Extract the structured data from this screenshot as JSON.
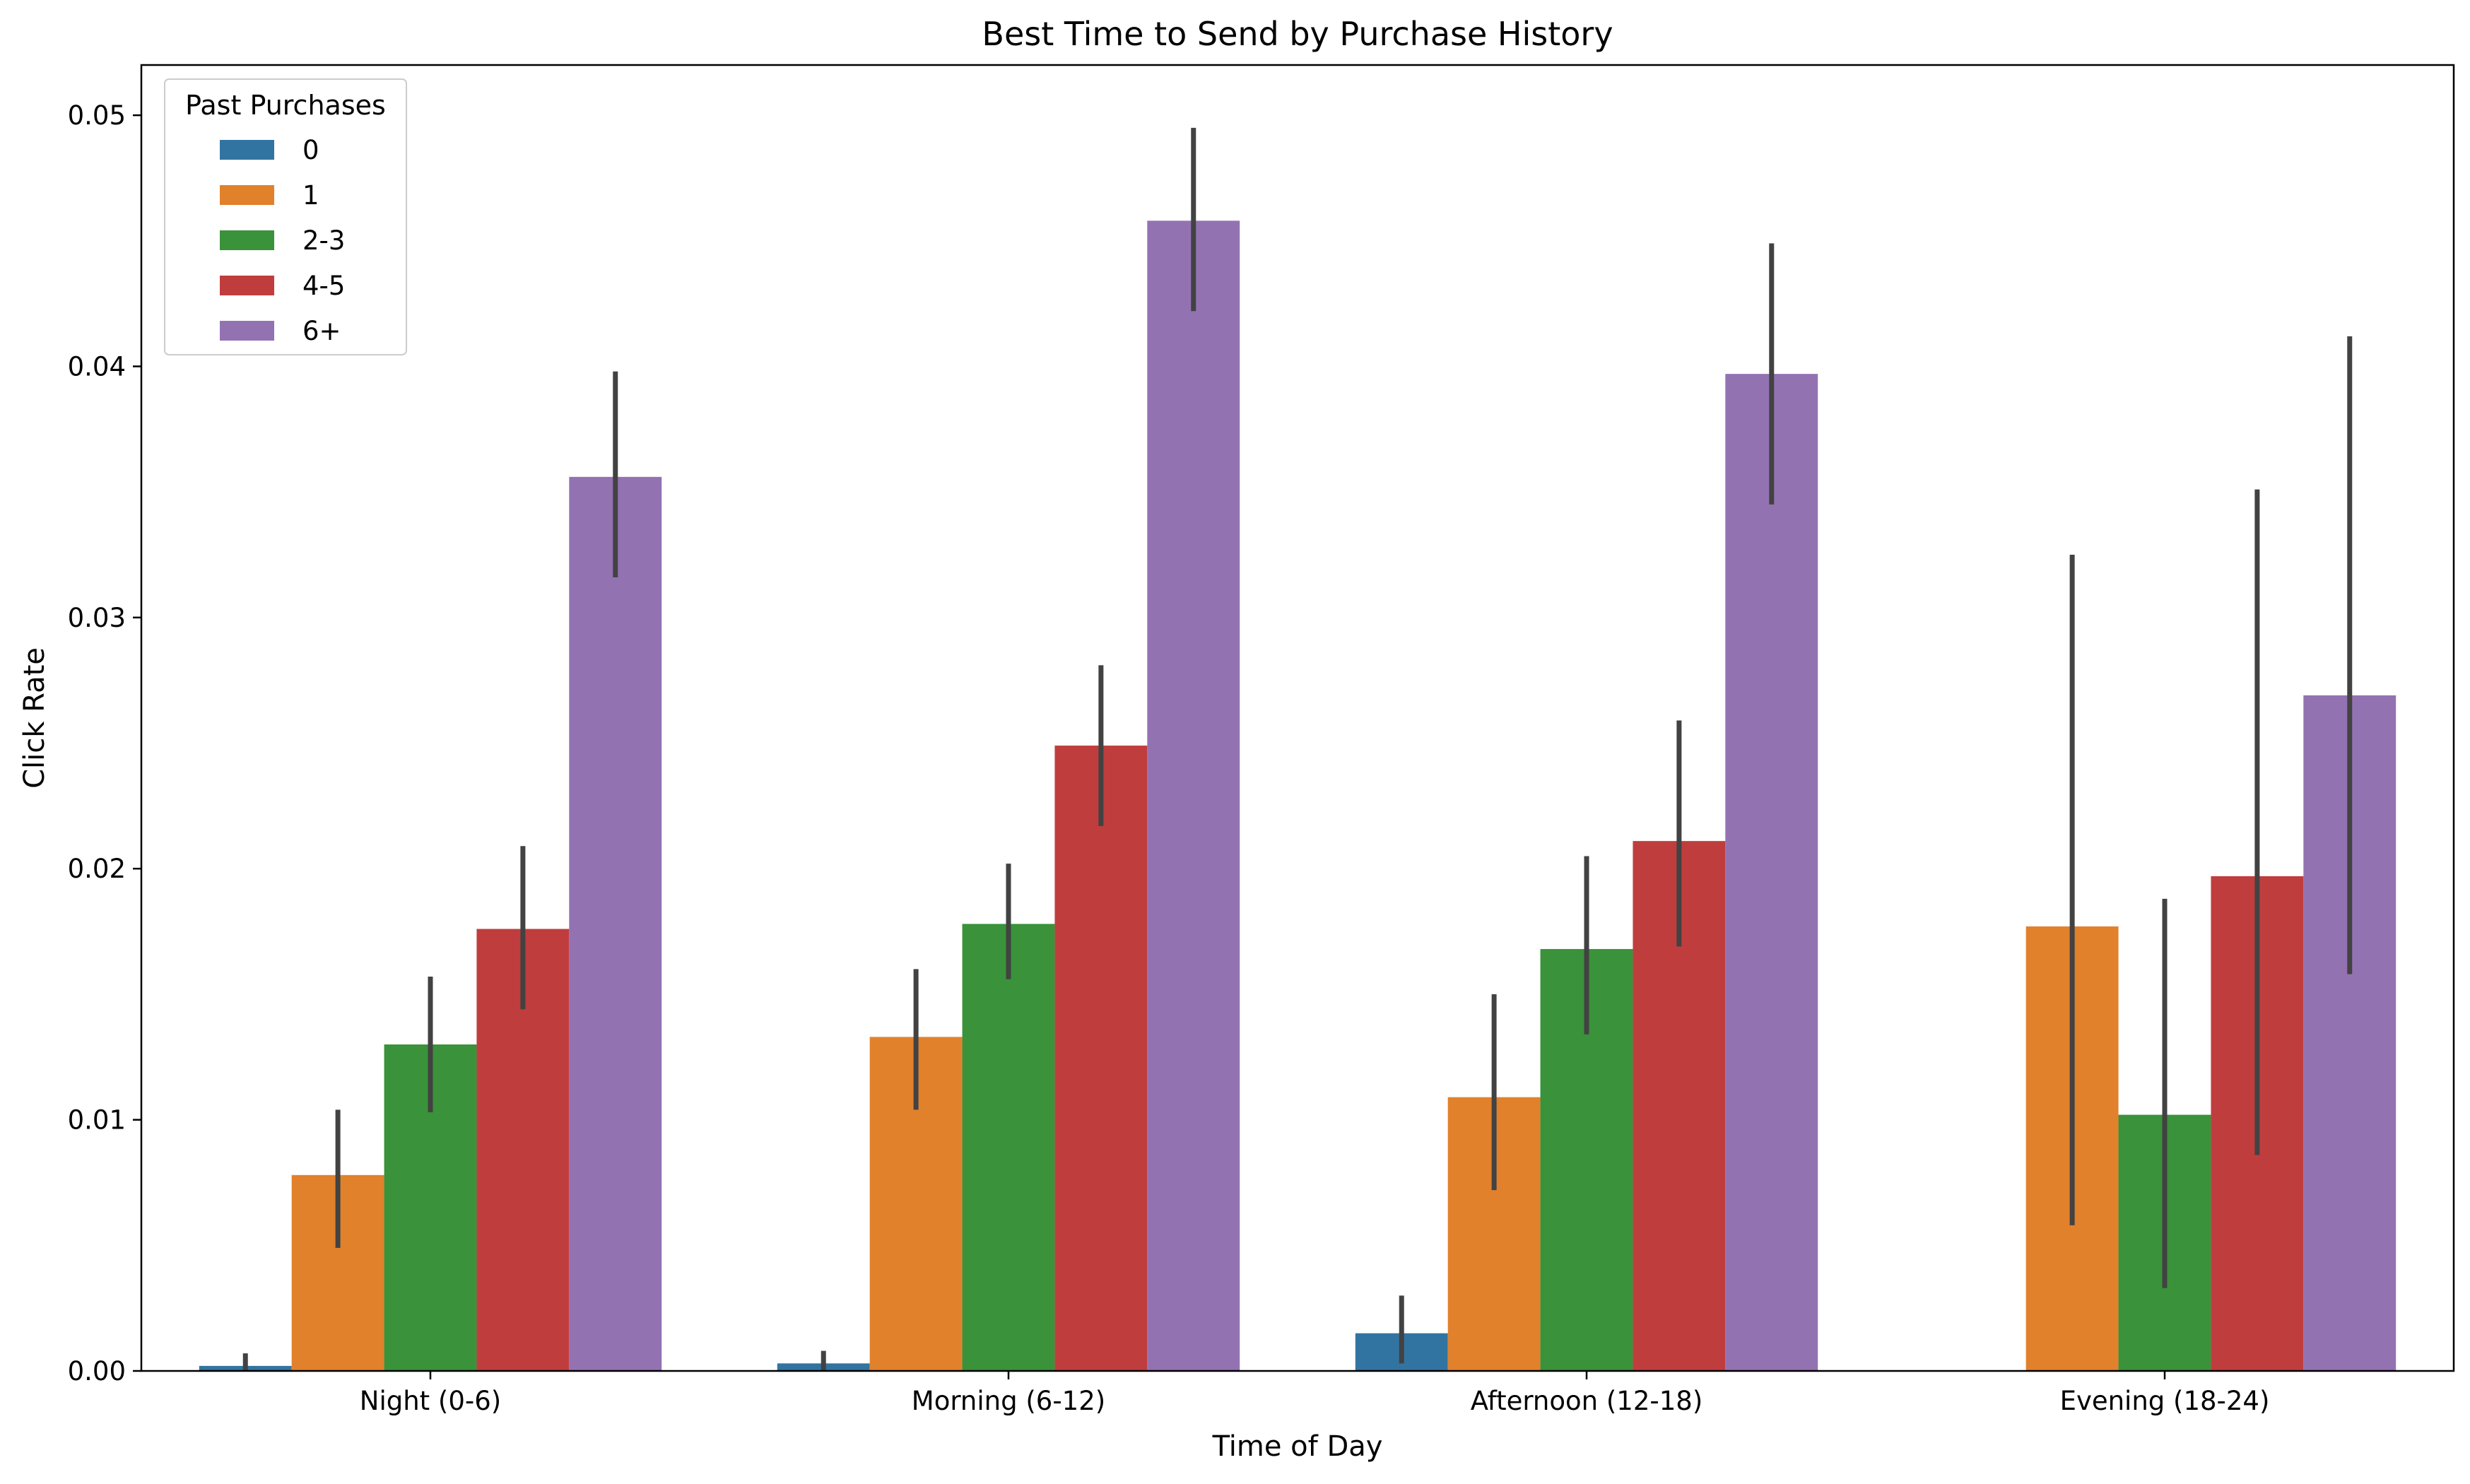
{
  "chart_data": {
    "type": "bar",
    "title": "Best Time to Send by Purchase History",
    "xlabel": "Time of Day",
    "ylabel": "Click Rate",
    "categories": [
      "Night (0-6)",
      "Morning (6-12)",
      "Afternoon (12-18)",
      "Evening (18-24)"
    ],
    "ylim": [
      0,
      0.052
    ],
    "yticks": [
      0.0,
      0.01,
      0.02,
      0.03,
      0.04,
      0.05
    ],
    "ytick_labels": [
      "0.00",
      "0.01",
      "0.02",
      "0.03",
      "0.04",
      "0.05"
    ],
    "grid": false,
    "legend": {
      "title": "Past Purchases",
      "placement": "top-left"
    },
    "series": [
      {
        "name": "0",
        "color": "#3274a1",
        "values": [
          0.0002,
          0.0003,
          0.0015,
          null
        ],
        "err_low": [
          0.0,
          0.0,
          0.0003,
          null
        ],
        "err_high": [
          0.0007,
          0.0008,
          0.003,
          null
        ]
      },
      {
        "name": "1",
        "color": "#e1812c",
        "values": [
          0.0078,
          0.0133,
          0.0109,
          0.0177
        ],
        "err_low": [
          0.0049,
          0.0104,
          0.0072,
          0.0058
        ],
        "err_high": [
          0.0104,
          0.016,
          0.015,
          0.0325
        ]
      },
      {
        "name": "2-3",
        "color": "#3a923a",
        "values": [
          0.013,
          0.0178,
          0.0168,
          0.0102
        ],
        "err_low": [
          0.0103,
          0.0156,
          0.0134,
          0.0033
        ],
        "err_high": [
          0.0157,
          0.0202,
          0.0205,
          0.0188
        ]
      },
      {
        "name": "4-5",
        "color": "#c03d3e",
        "values": [
          0.0176,
          0.0249,
          0.0211,
          0.0197
        ],
        "err_low": [
          0.0144,
          0.0217,
          0.0169,
          0.0086
        ],
        "err_high": [
          0.0209,
          0.0281,
          0.0259,
          0.0351
        ]
      },
      {
        "name": "6+",
        "color": "#9372b2",
        "values": [
          0.0356,
          0.0458,
          0.0397,
          0.0269
        ],
        "err_low": [
          0.0316,
          0.0422,
          0.0345,
          0.0158
        ],
        "err_high": [
          0.0398,
          0.0495,
          0.0449,
          0.0412
        ]
      }
    ]
  }
}
